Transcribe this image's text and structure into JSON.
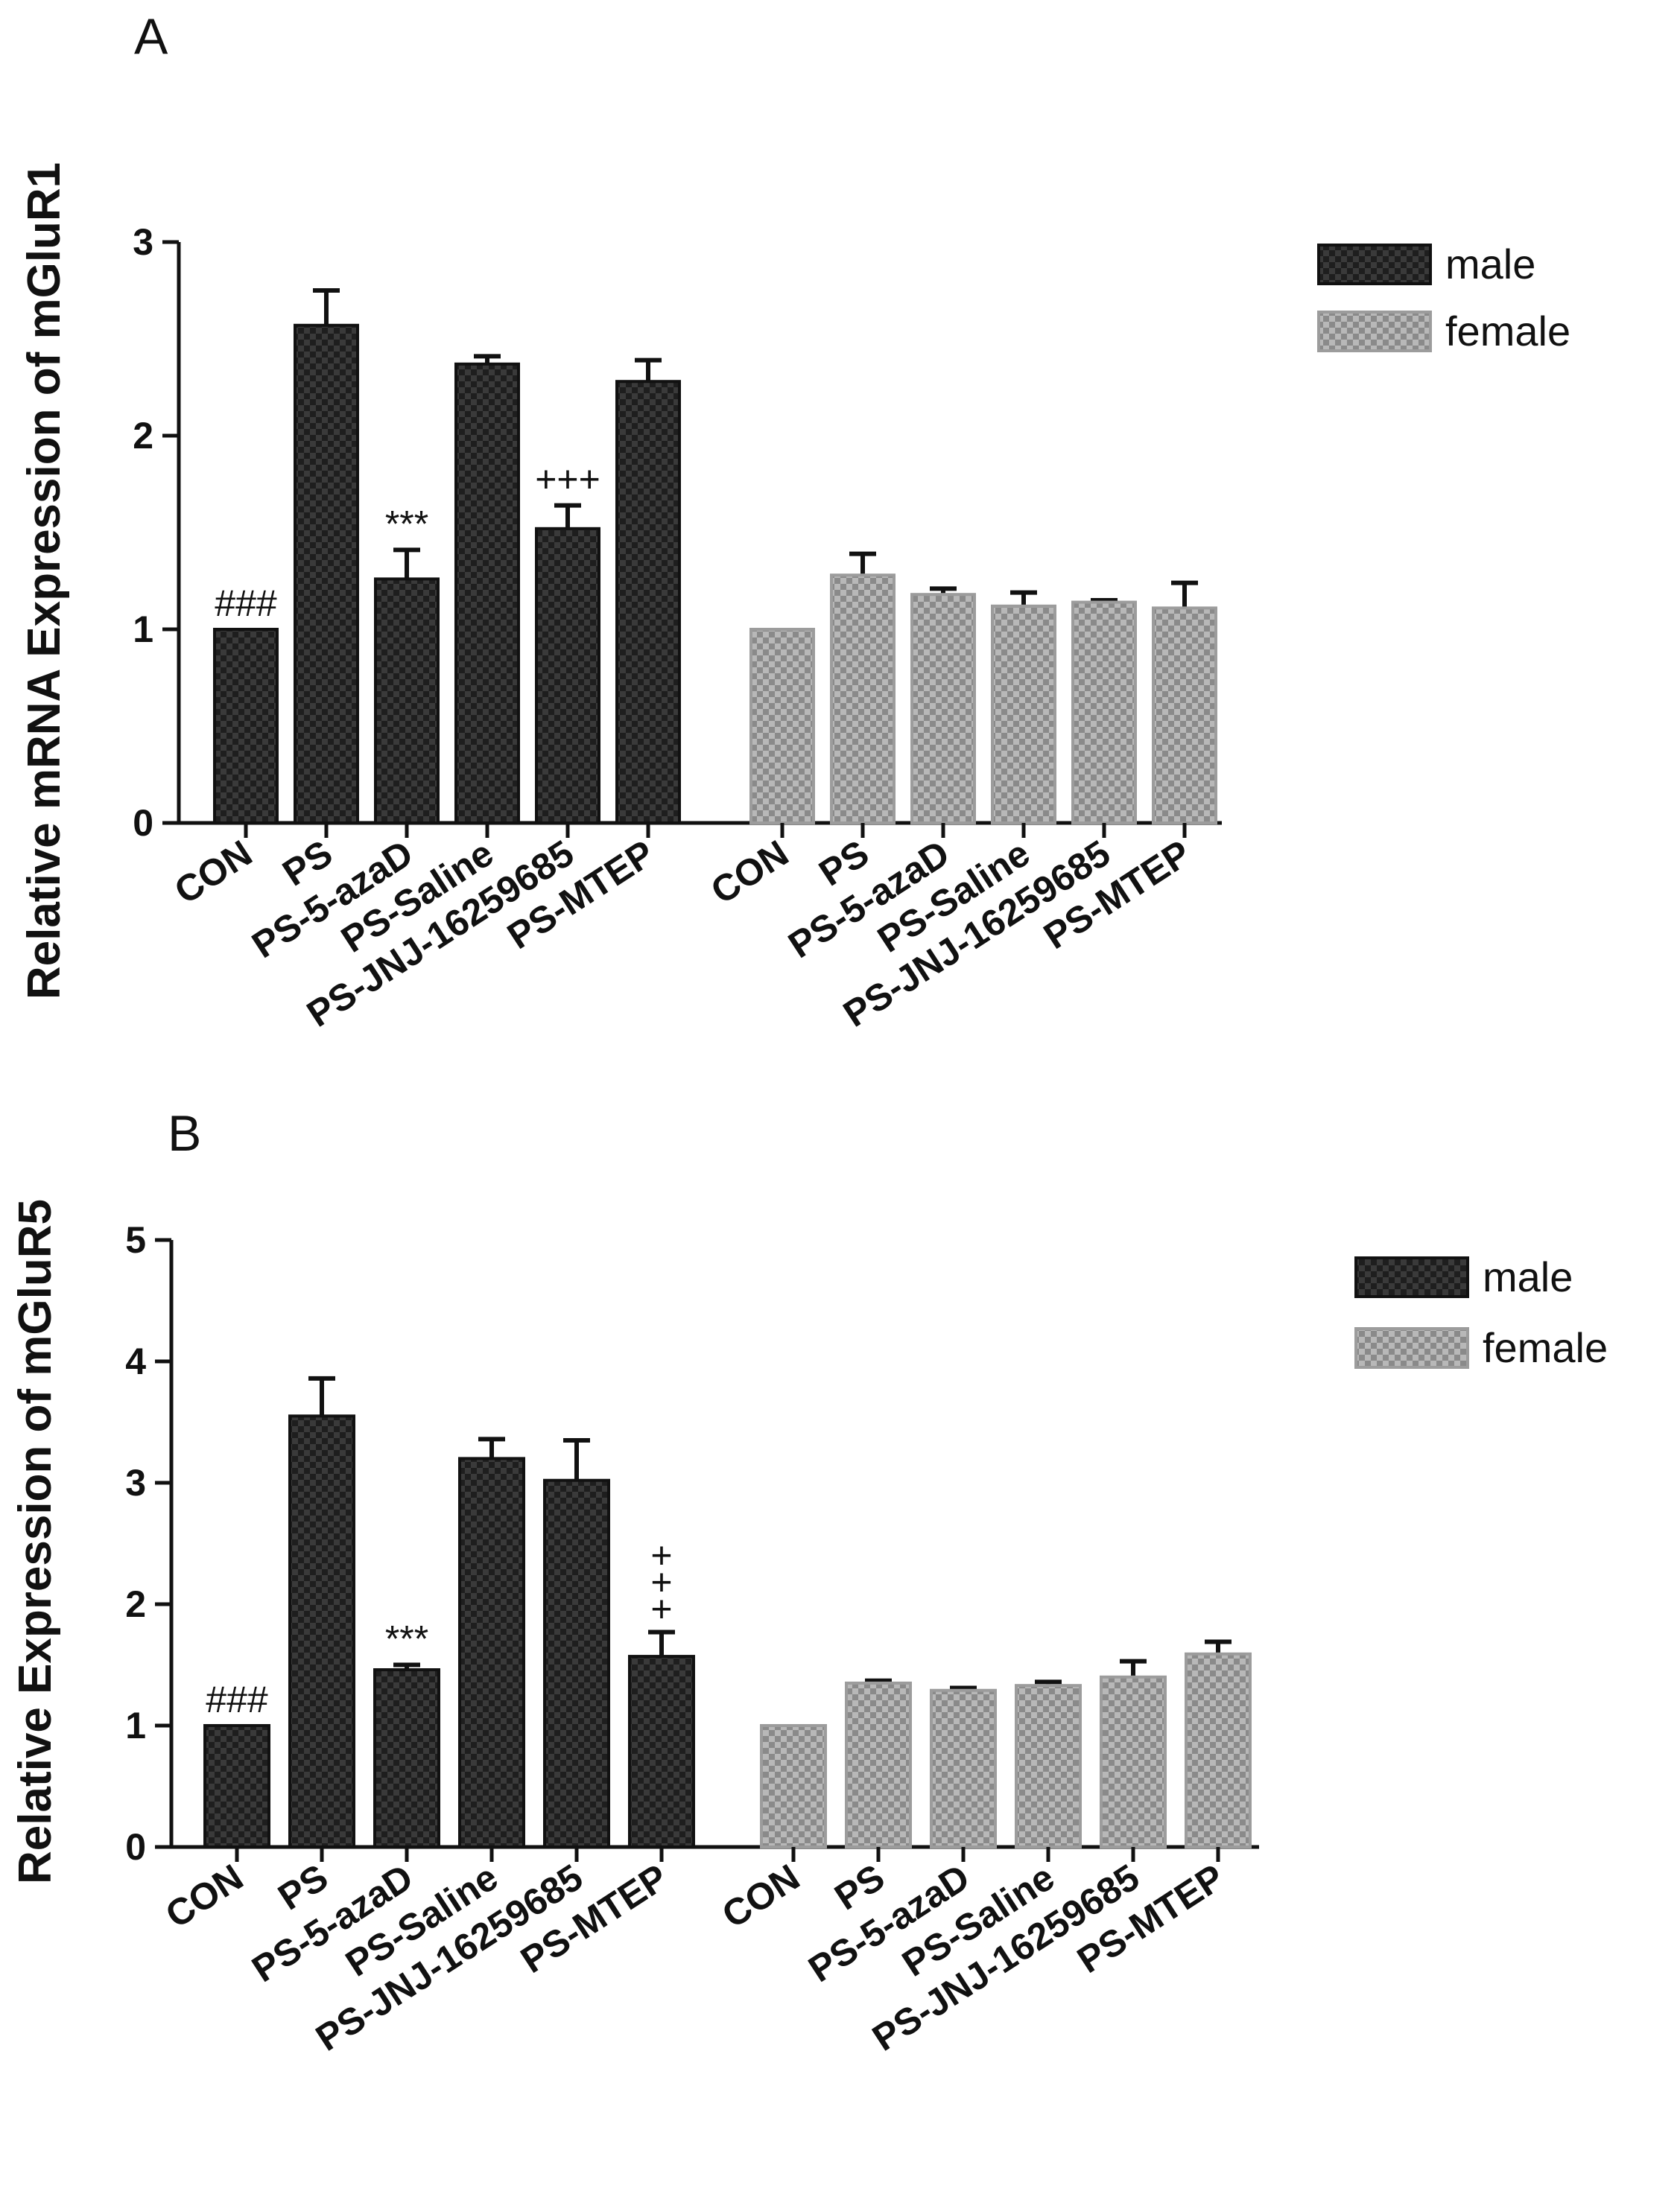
{
  "colors": {
    "male": "#2a2a2a",
    "female": "#9a9a9a",
    "axis": "#111111"
  },
  "chart_data": [
    {
      "type": "bar",
      "panel": "A",
      "ylabel": "Relative mRNA Expression of mGluR1",
      "ylim": [
        0,
        3
      ],
      "yticks": [
        "0",
        "1",
        "2",
        "3"
      ],
      "categories": [
        "CON",
        "PS",
        "PS-5-azaD",
        "PS-Saline",
        "PS-JNJ-16259685",
        "PS-MTEP"
      ],
      "series": [
        {
          "name": "male",
          "values": [
            1.0,
            2.57,
            1.26,
            2.37,
            1.52,
            2.28
          ],
          "errors": [
            0.0,
            0.18,
            0.15,
            0.04,
            0.12,
            0.11
          ],
          "annotations": [
            "###",
            "",
            "***",
            "",
            "+++",
            ""
          ]
        },
        {
          "name": "female",
          "values": [
            1.0,
            1.28,
            1.18,
            1.12,
            1.14,
            1.11
          ],
          "errors": [
            0.0,
            0.11,
            0.03,
            0.07,
            0.01,
            0.13
          ],
          "annotations": [
            "",
            "",
            "",
            "",
            "",
            ""
          ]
        }
      ],
      "legend": [
        "male",
        "female"
      ],
      "legend_position": "top-right"
    },
    {
      "type": "bar",
      "panel": "B",
      "ylabel": "Relative Expression of mGluR5",
      "ylim": [
        0,
        5
      ],
      "yticks": [
        "0",
        "1",
        "2",
        "3",
        "4",
        "5"
      ],
      "categories": [
        "CON",
        "PS",
        "PS-5-azaD",
        "PS-Saline",
        "PS-JNJ-16259685",
        "PS-MTEP"
      ],
      "series": [
        {
          "name": "male",
          "values": [
            1.0,
            3.55,
            1.46,
            3.2,
            3.02,
            1.57
          ],
          "errors": [
            0.0,
            0.31,
            0.04,
            0.16,
            0.33,
            0.2
          ],
          "annotations": [
            "###",
            "",
            "***",
            "",
            "",
            "+++"
          ]
        },
        {
          "name": "female",
          "values": [
            1.0,
            1.35,
            1.29,
            1.33,
            1.4,
            1.59
          ],
          "errors": [
            0.0,
            0.02,
            0.02,
            0.03,
            0.13,
            0.1
          ],
          "annotations": [
            "",
            "",
            "",
            "",
            "",
            ""
          ]
        }
      ],
      "legend": [
        "male",
        "female"
      ],
      "legend_position": "top-right"
    }
  ]
}
